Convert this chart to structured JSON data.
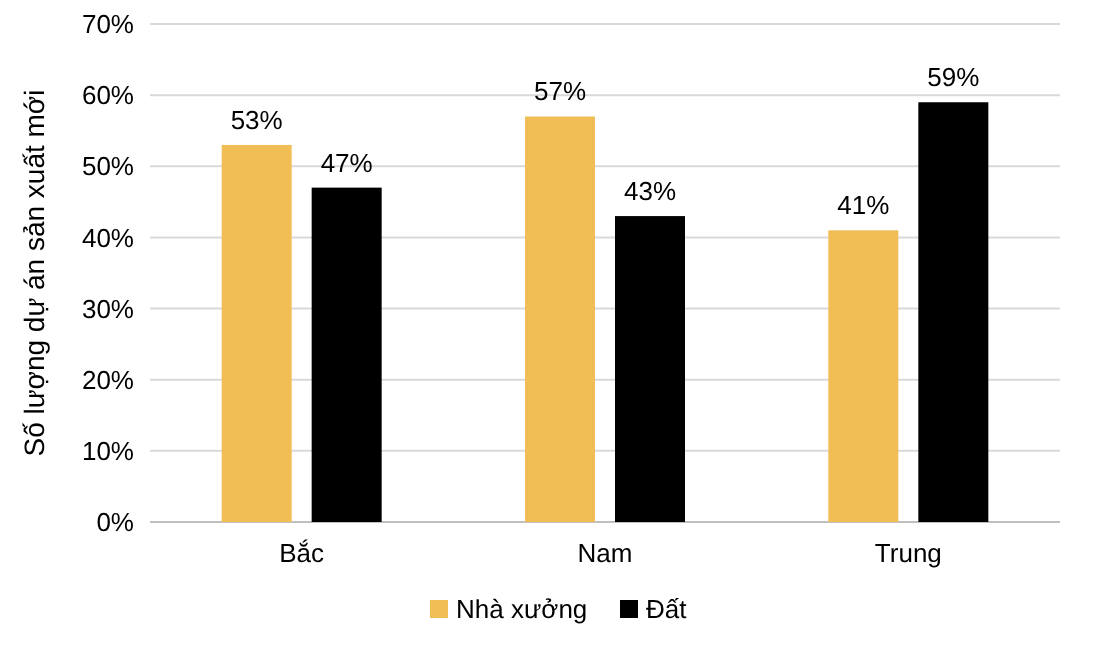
{
  "chart_data": {
    "type": "bar",
    "ylabel": "Số lượng dự án sản xuất mới",
    "categories": [
      "Bắc",
      "Nam",
      "Trung"
    ],
    "series": [
      {
        "name": "Nhà xưởng",
        "color": "#f0be55",
        "values": [
          53,
          57,
          41
        ],
        "value_labels": [
          "53%",
          "57%",
          "41%"
        ]
      },
      {
        "name": "Đất",
        "color": "#000000",
        "values": [
          47,
          43,
          59
        ],
        "value_labels": [
          "47%",
          "43%",
          "59%"
        ]
      }
    ],
    "ylim": [
      0,
      70
    ],
    "yticks": [
      {
        "value": 0,
        "label": "0%"
      },
      {
        "value": 10,
        "label": "10%"
      },
      {
        "value": 20,
        "label": "20%"
      },
      {
        "value": 30,
        "label": "30%"
      },
      {
        "value": 40,
        "label": "40%"
      },
      {
        "value": 50,
        "label": "50%"
      },
      {
        "value": 60,
        "label": "60%"
      },
      {
        "value": 70,
        "label": "70%"
      }
    ],
    "grid": "y",
    "legend": "bottom"
  }
}
